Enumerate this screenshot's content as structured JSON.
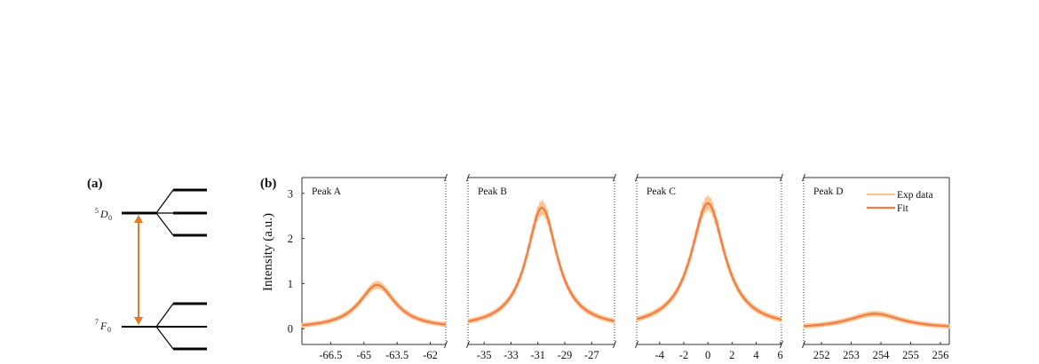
{
  "panel_a": {
    "label": "(a)",
    "upper_level": "D",
    "upper_sup": "5",
    "upper_sub": "0",
    "lower_level": "F",
    "lower_sup": "7",
    "lower_sub": "0",
    "arrow_color": "#e87722"
  },
  "panel_b": {
    "label": "(b)",
    "ylabel": "Intensity (a.u.)",
    "yticks": [
      "0",
      "1",
      "2",
      "3"
    ],
    "legend": {
      "exp": "Exp data",
      "fit": "Fit"
    },
    "colors": {
      "exp": "#fdc68f",
      "fit": "#f07c4c"
    }
  },
  "chart_data": [
    {
      "type": "line",
      "title": "Peak A",
      "xticks": [
        "-66.5",
        "-65",
        "-63.5",
        "-62"
      ],
      "xlim": [
        -67.8,
        -61.3
      ],
      "ylim": [
        -0.35,
        3.35
      ],
      "center": -64.4,
      "peak": 0.97,
      "hwhm": 1.0,
      "series": [
        {
          "name": "Exp data"
        },
        {
          "name": "Fit"
        }
      ]
    },
    {
      "type": "line",
      "title": "Peak B",
      "xticks": [
        "-35",
        "-33",
        "-31",
        "-29",
        "-27"
      ],
      "xlim": [
        -36.2,
        -25.3
      ],
      "ylim": [
        -0.35,
        3.35
      ],
      "center": -30.7,
      "peak": 2.68,
      "hwhm": 1.4,
      "series": [
        {
          "name": "Exp data"
        },
        {
          "name": "Fit"
        }
      ]
    },
    {
      "type": "line",
      "title": "Peak C",
      "xticks": [
        "-4",
        "-2",
        "0",
        "2",
        "4",
        "6"
      ],
      "xlim": [
        -5.9,
        6.1
      ],
      "ylim": [
        -0.35,
        3.35
      ],
      "center": 0.0,
      "peak": 2.78,
      "hwhm": 1.7,
      "series": [
        {
          "name": "Exp data"
        },
        {
          "name": "Fit"
        }
      ]
    },
    {
      "type": "line",
      "title": "Peak D",
      "xticks": [
        "252",
        "253",
        "254",
        "255",
        "256"
      ],
      "xlim": [
        251.4,
        256.3
      ],
      "ylim": [
        -0.35,
        3.35
      ],
      "center": 253.8,
      "peak": 0.33,
      "hwhm": 1.1,
      "series": [
        {
          "name": "Exp data"
        },
        {
          "name": "Fit"
        }
      ]
    }
  ]
}
